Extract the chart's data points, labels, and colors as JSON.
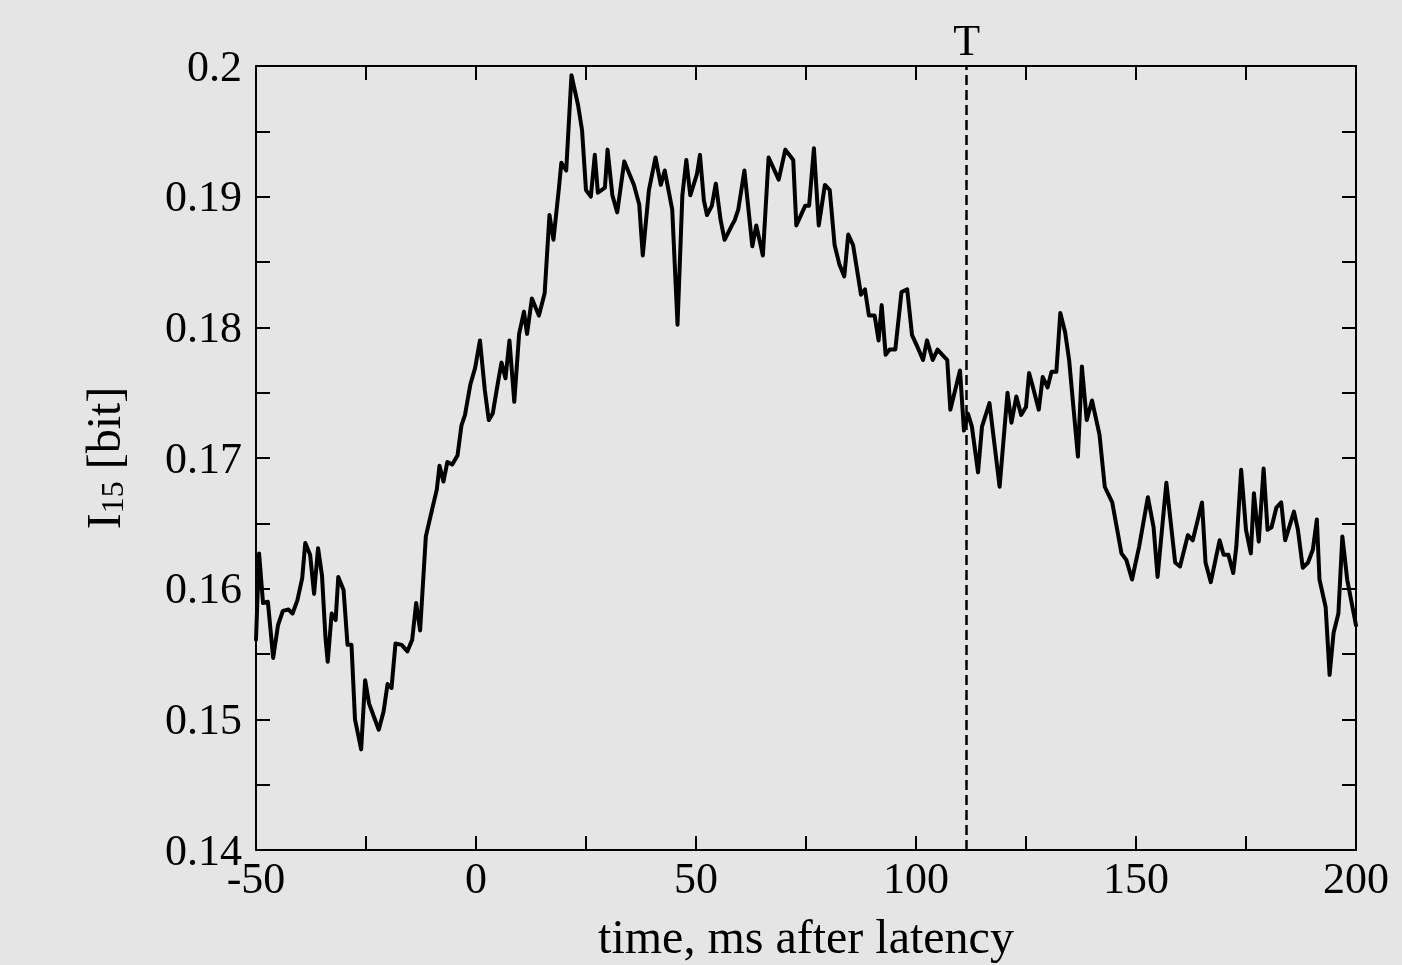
{
  "chart_data": {
    "type": "line",
    "xlabel": "time, ms after latency",
    "ylabel": "I$_{15}$ [bit]",
    "series": [
      {
        "color": "#000000",
        "x": [
          -50,
          -49.3,
          -48.4,
          -47.3,
          -46.1,
          -45,
          -43.9,
          -42.6,
          -41.7,
          -40.6,
          -39.5,
          -38.8,
          -37.7,
          -36.8,
          -35.9,
          -35,
          -34.2,
          -33.7,
          -32.8,
          -31.9,
          -31.3,
          -30.1,
          -29.2,
          -28.3,
          -27.5,
          -26.1,
          -25.2,
          -24.3,
          -23.2,
          -22.1,
          -21,
          -20.1,
          -19.2,
          -18.3,
          -16.9,
          -15.6,
          -14.5,
          -13.6,
          -12.7,
          -11.4,
          -10.3,
          -8.9,
          -8.3,
          -7.4,
          -6.5,
          -5.4,
          -4.2,
          -3.3,
          -2.5,
          -1.3,
          -0.2,
          0.9,
          2,
          2.9,
          3.8,
          5.1,
          5.8,
          6.7,
          7.6,
          8.7,
          9.8,
          10.9,
          11.6,
          12.7,
          14.3,
          15.6,
          16.7,
          17.6,
          18.8,
          19.4,
          20.5,
          21.7,
          23.2,
          24.1,
          25,
          26.1,
          27,
          27.7,
          29.3,
          29.9,
          31,
          32.1,
          33.7,
          35.9,
          37.1,
          37.9,
          39.3,
          40.8,
          42,
          42.9,
          44.6,
          45.8,
          46.9,
          47.8,
          48.7,
          50.2,
          50.9,
          51.8,
          52.5,
          53.6,
          54.5,
          55.6,
          56.5,
          58.3,
          58.8,
          59.6,
          61,
          62.8,
          63.7,
          65.2,
          66.5,
          68.8,
          70.3,
          72.1,
          72.8,
          74.8,
          75.7,
          76.8,
          77.9,
          79.3,
          80.4,
          81.5,
          82.6,
          83.7,
          84.6,
          85.7,
          87.5,
          88.4,
          89.3,
          90.6,
          91.5,
          92.2,
          93.1,
          94,
          95.3,
          96.7,
          98,
          99.1,
          100.2,
          101.6,
          102.5,
          103.8,
          104.9,
          106,
          107.1,
          107.8,
          110,
          110.9,
          111.8,
          112.7,
          114.1,
          115,
          116.7,
          119,
          120.8,
          121.7,
          122.8,
          123.9,
          125,
          125.7,
          126.6,
          127.9,
          128.8,
          129.9,
          130.8,
          131.9,
          132.8,
          133.9,
          134.8,
          136.8,
          137.7,
          138.8,
          140,
          141.7,
          142.9,
          144.6,
          146.7,
          147.8,
          149.1,
          150.7,
          152.7,
          154,
          154.9,
          156.9,
          158.9,
          160,
          161.8,
          162.9,
          165,
          165.8,
          167,
          169,
          169.9,
          171,
          172.1,
          172.8,
          173.9,
          175,
          176.1,
          176.8,
          177.9,
          179,
          179.9,
          180.8,
          181.9,
          183,
          183.9,
          185.9,
          186.8,
          187.9,
          189.1,
          190.2,
          191.1,
          191.7,
          193.1,
          194,
          194.9,
          196,
          196.9,
          198,
          200
        ],
        "values": [
          0.1561,
          0.1627,
          0.1589,
          0.159,
          0.1547,
          0.1572,
          0.1583,
          0.1584,
          0.1581,
          0.1591,
          0.1608,
          0.1635,
          0.1626,
          0.1596,
          0.1631,
          0.161,
          0.1562,
          0.1544,
          0.1581,
          0.1576,
          0.1609,
          0.1599,
          0.1557,
          0.1557,
          0.15,
          0.1477,
          0.153,
          0.1512,
          0.1502,
          0.1492,
          0.1506,
          0.1527,
          0.1524,
          0.1558,
          0.1557,
          0.1552,
          0.1561,
          0.1589,
          0.1568,
          0.164,
          0.1656,
          0.1676,
          0.1694,
          0.1682,
          0.1697,
          0.1695,
          0.1702,
          0.1725,
          0.1733,
          0.1756,
          0.1769,
          0.179,
          0.1752,
          0.1729,
          0.1734,
          0.176,
          0.1773,
          0.1761,
          0.179,
          0.1743,
          0.1795,
          0.1812,
          0.1795,
          0.1822,
          0.1809,
          0.1826,
          0.1886,
          0.1867,
          0.1905,
          0.1926,
          0.192,
          0.1993,
          0.197,
          0.1951,
          0.1905,
          0.19,
          0.1932,
          0.1903,
          0.1907,
          0.1936,
          0.1901,
          0.1888,
          0.1927,
          0.1909,
          0.1894,
          0.1855,
          0.1905,
          0.193,
          0.1909,
          0.192,
          0.189,
          0.1802,
          0.1901,
          0.1928,
          0.1901,
          0.1917,
          0.1932,
          0.1897,
          0.1886,
          0.1893,
          0.191,
          0.1882,
          0.1867,
          0.1879,
          0.1882,
          0.189,
          0.192,
          0.1862,
          0.1878,
          0.1855,
          0.193,
          0.1913,
          0.1936,
          0.1928,
          0.1878,
          0.1893,
          0.1893,
          0.1937,
          0.1878,
          0.1909,
          0.1905,
          0.1863,
          0.1848,
          0.1839,
          0.1871,
          0.1863,
          0.1825,
          0.1829,
          0.1809,
          0.1809,
          0.179,
          0.1817,
          0.1779,
          0.1783,
          0.1783,
          0.1827,
          0.1829,
          0.1794,
          0.1786,
          0.1775,
          0.179,
          0.1775,
          0.1783,
          0.1779,
          0.1775,
          0.1737,
          0.1767,
          0.1721,
          0.1734,
          0.1724,
          0.1689,
          0.1724,
          0.1742,
          0.1678,
          0.175,
          0.1727,
          0.1747,
          0.1733,
          0.1739,
          0.1765,
          0.1754,
          0.1737,
          0.1762,
          0.1754,
          0.1766,
          0.1766,
          0.1811,
          0.1796,
          0.1775,
          0.1701,
          0.177,
          0.1729,
          0.1744,
          0.1718,
          0.1678,
          0.1666,
          0.1627,
          0.1622,
          0.1607,
          0.1632,
          0.167,
          0.1647,
          0.1609,
          0.1681,
          0.162,
          0.1617,
          0.1641,
          0.1637,
          0.1666,
          0.162,
          0.1605,
          0.1637,
          0.1626,
          0.1626,
          0.1612,
          0.1632,
          0.1691,
          0.1645,
          0.1627,
          0.1673,
          0.1636,
          0.1692,
          0.1645,
          0.1647,
          0.1662,
          0.1666,
          0.1637,
          0.1659,
          0.1645,
          0.1616,
          0.162,
          0.163,
          0.1653,
          0.1607,
          0.1586,
          0.1534,
          0.1566,
          0.1581,
          0.164,
          0.1607,
          0.1572
        ]
      }
    ],
    "xlim": [
      -50,
      200
    ],
    "xticks": [
      -50,
      {
        "value": -25,
        "label": null
      },
      0,
      {
        "value": 25,
        "label": null
      },
      50,
      {
        "value": 75,
        "label": null
      },
      100,
      {
        "value": 125,
        "label": null
      },
      150,
      {
        "value": 175,
        "label": null
      },
      200
    ],
    "ylim": [
      0.14,
      0.2
    ],
    "yticks": [
      0.14,
      {
        "value": 0.145,
        "label": null
      },
      0.15,
      {
        "value": 0.155,
        "label": null
      },
      0.16,
      {
        "value": 0.165,
        "label": null
      },
      0.17,
      {
        "value": 0.175,
        "label": null
      },
      0.18,
      {
        "value": 0.185,
        "label": null
      },
      0.19,
      {
        "value": 0.195,
        "label": null
      },
      0.2
    ],
    "ref_lines": [
      {
        "axis": "x",
        "value": 111.5,
        "label": "T",
        "color": "#000000",
        "line_style": "dashed"
      }
    ],
    "grid": false,
    "marker": "none",
    "line_style": "solid"
  }
}
